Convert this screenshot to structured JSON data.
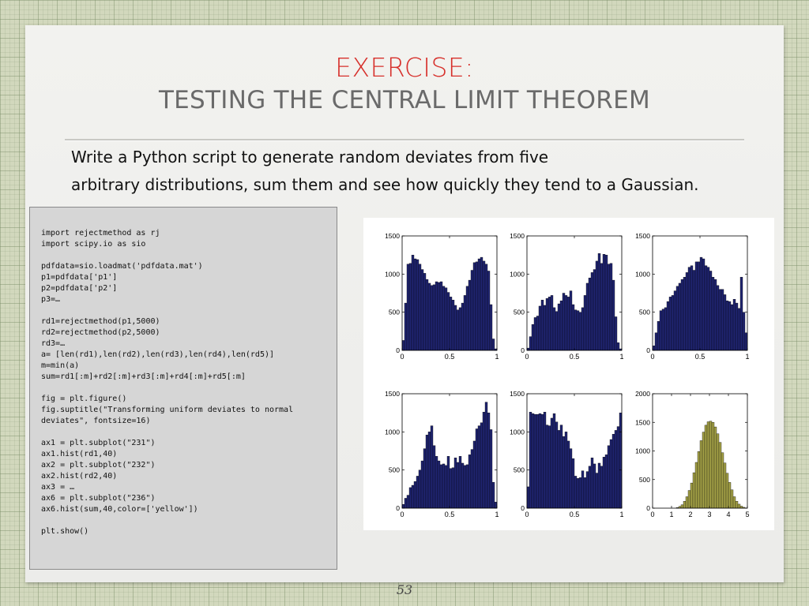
{
  "slide": {
    "title_line1": "EXERCISE:",
    "title_line2": "TESTING THE CENTRAL LIMIT THEOREM",
    "body_lines": [
      "Write a Python script to generate random deviates from five",
      "arbitrary distributions, sum them and see how quickly they tend to a Gaussian."
    ],
    "page_number": "53"
  },
  "code_lines": [
    "import rejectmethod as rj",
    "import scipy.io as sio",
    "",
    "pdfdata=sio.loadmat('pdfdata.mat')",
    "p1=pdfdata['p1']",
    "p2=pdfdata['p2']",
    "p3=…",
    "",
    "rd1=rejectmethod(p1,5000)",
    "rd2=rejectmethod(p2,5000)",
    "rd3=…",
    "a= [len(rd1),len(rd2),len(rd3),len(rd4),len(rd5)]",
    "m=min(a)",
    "sum=rd1[:m]+rd2[:m]+rd3[:m]+rd4[:m]+rd5[:m]",
    "",
    "fig = plt.figure()",
    "fig.suptitle(\"Transforming uniform deviates to normal",
    "deviates\", fontsize=16)",
    "",
    "ax1 = plt.subplot(\"231\")",
    "ax1.hist(rd1,40)",
    "ax2 = plt.subplot(\"232\")",
    "ax2.hist(rd2,40)",
    "ax3 = …",
    "ax6 = plt.subplot(\"236\")",
    "ax6.hist(sum,40,color=['yellow'])",
    "",
    "plt.show()"
  ],
  "colors": {
    "title_red": "#d7302b",
    "title_gray": "#6a6a6a",
    "bar_navy": "#1f2470",
    "bar_yellow": "#a3a046"
  },
  "chart_data": [
    {
      "type": "bar",
      "xlim": [
        0,
        1
      ],
      "ylim": [
        0,
        1500
      ],
      "xticks": [
        "0",
        "0.5",
        "1"
      ],
      "yticks": [
        "0",
        "500",
        "1000",
        "1500"
      ],
      "color": "navy",
      "values": [
        130,
        620,
        1130,
        1140,
        1250,
        1200,
        1190,
        1130,
        1060,
        1010,
        930,
        880,
        850,
        860,
        900,
        890,
        900,
        840,
        820,
        760,
        700,
        660,
        590,
        530,
        560,
        620,
        720,
        840,
        920,
        1050,
        1150,
        1160,
        1200,
        1220,
        1170,
        1130,
        1040,
        600,
        150,
        20
      ]
    },
    {
      "type": "bar",
      "xlim": [
        0,
        1
      ],
      "ylim": [
        0,
        1500
      ],
      "xticks": [
        "0",
        "0.5",
        "1"
      ],
      "yticks": [
        "0",
        "500",
        "1000",
        "1500"
      ],
      "color": "navy",
      "values": [
        30,
        180,
        340,
        430,
        450,
        580,
        660,
        590,
        680,
        700,
        720,
        560,
        510,
        610,
        650,
        750,
        720,
        700,
        780,
        600,
        530,
        520,
        500,
        560,
        720,
        880,
        950,
        1020,
        1060,
        1170,
        1270,
        1140,
        1260,
        1250,
        1130,
        1140,
        920,
        440,
        100,
        20
      ]
    },
    {
      "type": "bar",
      "xlim": [
        0,
        1
      ],
      "ylim": [
        0,
        1500
      ],
      "xticks": [
        "0",
        "0.5",
        "1"
      ],
      "yticks": [
        "0",
        "500",
        "1000",
        "1500"
      ],
      "color": "navy",
      "values": [
        60,
        230,
        380,
        520,
        540,
        560,
        640,
        700,
        720,
        780,
        840,
        880,
        930,
        960,
        1020,
        1090,
        1110,
        1050,
        1160,
        1160,
        1220,
        1200,
        1110,
        1090,
        1040,
        960,
        930,
        850,
        800,
        800,
        730,
        650,
        640,
        600,
        670,
        620,
        550,
        960,
        500,
        230
      ]
    },
    {
      "type": "bar",
      "xlim": [
        0,
        1
      ],
      "ylim": [
        0,
        1500
      ],
      "xticks": [
        "0",
        "0.5",
        "1"
      ],
      "yticks": [
        "0",
        "500",
        "1000",
        "1500"
      ],
      "color": "navy",
      "values": [
        50,
        130,
        170,
        270,
        300,
        350,
        420,
        500,
        620,
        780,
        960,
        1000,
        1080,
        820,
        680,
        620,
        570,
        580,
        560,
        680,
        520,
        530,
        660,
        600,
        680,
        590,
        560,
        570,
        700,
        770,
        880,
        1040,
        1080,
        1120,
        1260,
        1390,
        1250,
        1030,
        340,
        80
      ]
    },
    {
      "type": "bar",
      "xlim": [
        0,
        1
      ],
      "ylim": [
        0,
        1500
      ],
      "xticks": [
        "0",
        "0.5",
        "1"
      ],
      "yticks": [
        "0",
        "500",
        "1000",
        "1500"
      ],
      "color": "navy",
      "values": [
        280,
        1260,
        1240,
        1230,
        1230,
        1240,
        1230,
        1260,
        1090,
        1080,
        1180,
        1240,
        1130,
        1020,
        1090,
        940,
        1000,
        880,
        780,
        650,
        420,
        390,
        400,
        490,
        400,
        480,
        550,
        660,
        580,
        460,
        590,
        550,
        670,
        700,
        820,
        900,
        970,
        1020,
        1070,
        1250
      ]
    },
    {
      "type": "bar",
      "xlim": [
        0,
        5
      ],
      "ylim": [
        0,
        2000
      ],
      "xticks": [
        "0",
        "1",
        "2",
        "3",
        "4",
        "5"
      ],
      "yticks": [
        "0",
        "500",
        "1000",
        "1500",
        "2000"
      ],
      "color": "yellow",
      "values": [
        0,
        0,
        0,
        0,
        0,
        0,
        0,
        0,
        0,
        0,
        10,
        30,
        60,
        120,
        200,
        310,
        440,
        620,
        800,
        990,
        1180,
        1330,
        1450,
        1510,
        1520,
        1500,
        1420,
        1300,
        1150,
        970,
        790,
        610,
        450,
        320,
        200,
        120,
        70,
        35,
        15,
        5
      ]
    }
  ]
}
